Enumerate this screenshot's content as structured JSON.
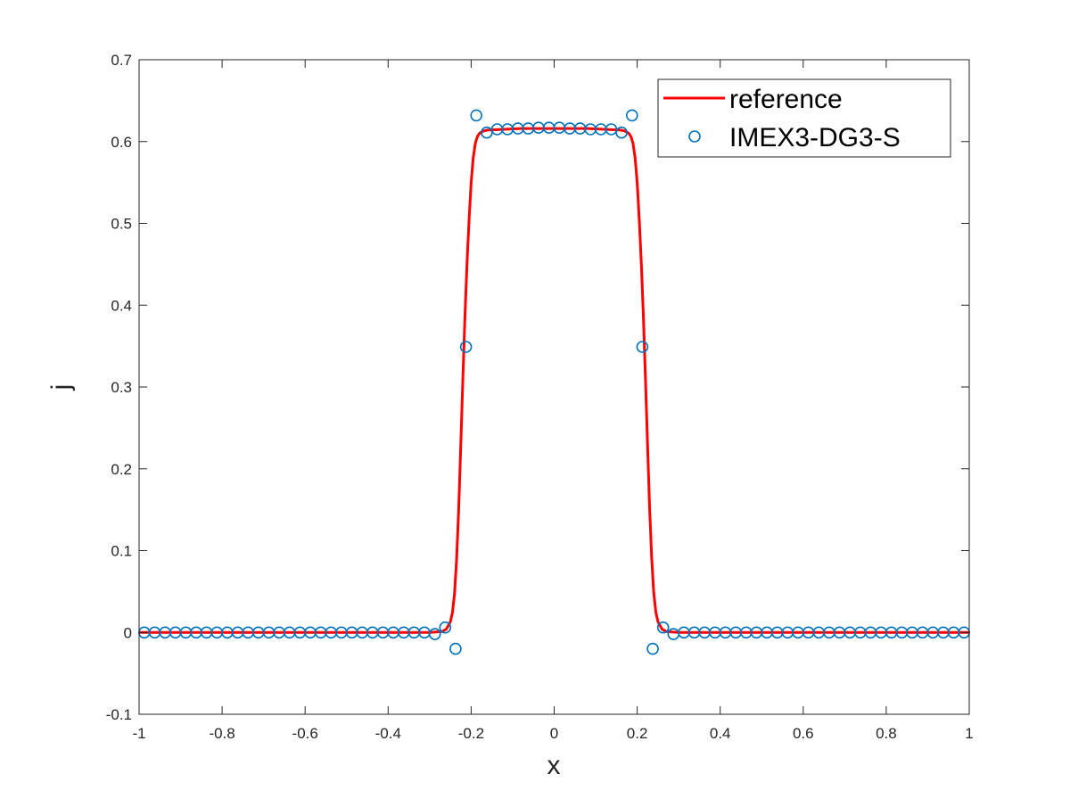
{
  "chart_data": {
    "type": "line",
    "title": "",
    "xlabel": "x",
    "ylabel": "j",
    "xlim": [
      -1,
      1
    ],
    "ylim": [
      -0.1,
      0.7
    ],
    "xticks": [
      -1,
      -0.8,
      -0.6,
      -0.4,
      -0.2,
      0,
      0.2,
      0.4,
      0.6,
      0.8,
      1
    ],
    "xtick_labels": [
      "-1",
      "-0.8",
      "-0.6",
      "-0.4",
      "-0.2",
      "0",
      "0.2",
      "0.4",
      "0.6",
      "0.8",
      "1"
    ],
    "yticks": [
      -0.1,
      0,
      0.1,
      0.2,
      0.3,
      0.4,
      0.5,
      0.6,
      0.7
    ],
    "ytick_labels": [
      "-0.1",
      "0",
      "0.1",
      "0.2",
      "0.3",
      "0.4",
      "0.5",
      "0.6",
      "0.7"
    ],
    "grid": false,
    "legend_position": "top-right",
    "series": [
      {
        "name": "reference",
        "style": "line",
        "color": "#ff0000",
        "x": [
          -1,
          -0.6,
          -0.3,
          -0.27,
          -0.26,
          -0.25,
          -0.245,
          -0.24,
          -0.235,
          -0.23,
          -0.225,
          -0.22,
          -0.215,
          -0.21,
          -0.205,
          -0.2,
          -0.195,
          -0.19,
          -0.185,
          -0.18,
          -0.17,
          -0.16,
          -0.12,
          -0.08,
          -0.04,
          0,
          0.04,
          0.08,
          0.12,
          0.16,
          0.17,
          0.18,
          0.185,
          0.19,
          0.195,
          0.2,
          0.205,
          0.21,
          0.215,
          0.22,
          0.225,
          0.23,
          0.235,
          0.24,
          0.245,
          0.25,
          0.26,
          0.27,
          0.3,
          0.6,
          1
        ],
        "y": [
          0,
          0,
          0,
          0.001,
          0.004,
          0.013,
          0.025,
          0.048,
          0.09,
          0.15,
          0.23,
          0.31,
          0.385,
          0.45,
          0.505,
          0.55,
          0.58,
          0.598,
          0.606,
          0.61,
          0.613,
          0.614,
          0.615,
          0.616,
          0.616,
          0.616,
          0.616,
          0.616,
          0.615,
          0.614,
          0.613,
          0.61,
          0.606,
          0.598,
          0.58,
          0.55,
          0.505,
          0.45,
          0.385,
          0.31,
          0.23,
          0.15,
          0.09,
          0.048,
          0.025,
          0.013,
          0.004,
          0.001,
          0,
          0,
          0
        ]
      },
      {
        "name": "IMEX3-DG3-S",
        "style": "marker-circle",
        "color": "#0072bd",
        "x": [
          -0.9875,
          -0.9625,
          -0.9375,
          -0.9125,
          -0.8875,
          -0.8625,
          -0.8375,
          -0.8125,
          -0.7875,
          -0.7625,
          -0.7375,
          -0.7125,
          -0.6875,
          -0.6625,
          -0.6375,
          -0.6125,
          -0.5875,
          -0.5625,
          -0.5375,
          -0.5125,
          -0.4875,
          -0.4625,
          -0.4375,
          -0.4125,
          -0.3875,
          -0.3625,
          -0.3375,
          -0.3125,
          -0.2875,
          -0.2625,
          -0.2375,
          -0.2125,
          -0.1875,
          -0.1625,
          -0.1375,
          -0.1125,
          -0.0875,
          -0.0625,
          -0.0375,
          -0.0125,
          0.0125,
          0.0375,
          0.0625,
          0.0875,
          0.1125,
          0.1375,
          0.1625,
          0.1875,
          0.2125,
          0.2375,
          0.2625,
          0.2875,
          0.3125,
          0.3375,
          0.3625,
          0.3875,
          0.4125,
          0.4375,
          0.4625,
          0.4875,
          0.5125,
          0.5375,
          0.5625,
          0.5875,
          0.6125,
          0.6375,
          0.6625,
          0.6875,
          0.7125,
          0.7375,
          0.7625,
          0.7875,
          0.8125,
          0.8375,
          0.8625,
          0.8875,
          0.9125,
          0.9375,
          0.9625,
          0.9875
        ],
        "y": [
          0,
          0,
          0,
          0,
          0,
          0,
          0,
          0,
          0,
          0,
          0,
          0,
          0,
          0,
          0,
          0,
          0,
          0,
          0,
          0,
          0,
          0,
          0,
          0,
          0,
          0,
          0,
          0,
          -0.002,
          0.006,
          -0.02,
          0.349,
          0.632,
          0.611,
          0.615,
          0.615,
          0.616,
          0.616,
          0.617,
          0.617,
          0.617,
          0.616,
          0.616,
          0.615,
          0.615,
          0.615,
          0.611,
          0.632,
          0.349,
          -0.02,
          0.006,
          -0.002,
          0,
          0,
          0,
          0,
          0,
          0,
          0,
          0,
          0,
          0,
          0,
          0,
          0,
          0,
          0,
          0,
          0,
          0,
          0,
          0,
          0,
          0,
          0,
          0,
          0,
          0,
          0,
          0
        ]
      }
    ]
  }
}
